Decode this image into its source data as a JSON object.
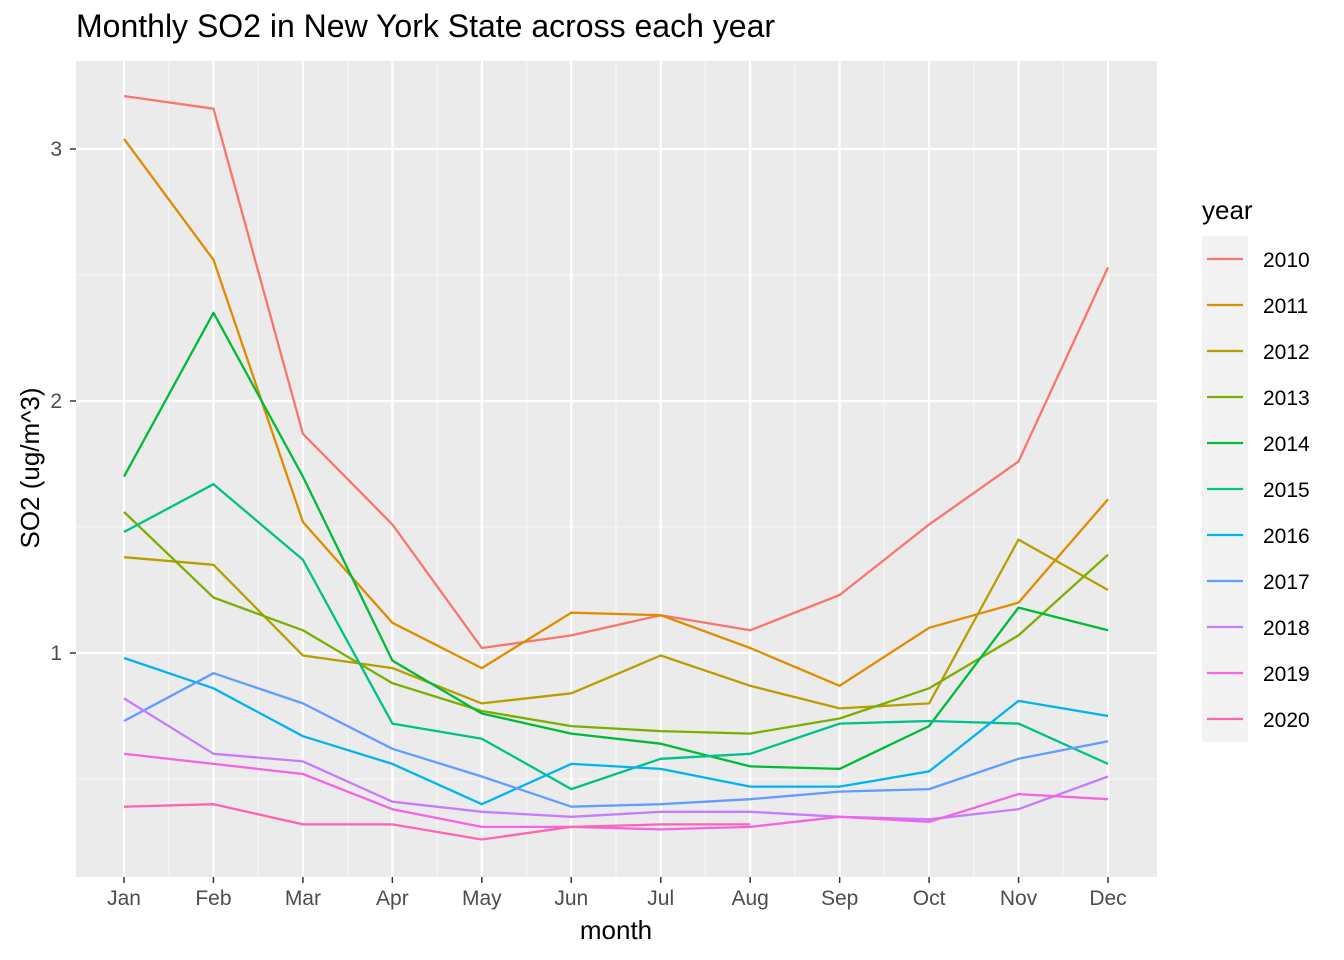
{
  "chart_data": {
    "type": "line",
    "title": "Monthly SO2 in New York State across each year",
    "xlabel": "month",
    "ylabel": "SO2 (ug/m^3)",
    "categories": [
      "Jan",
      "Feb",
      "Mar",
      "Apr",
      "May",
      "Jun",
      "Jul",
      "Aug",
      "Sep",
      "Oct",
      "Nov",
      "Dec"
    ],
    "ylim": [
      0.1,
      3.35
    ],
    "yticks": [
      1,
      2,
      3
    ],
    "grid": true,
    "legend": {
      "title": "year",
      "placement": "right"
    },
    "series": [
      {
        "name": "2010",
        "color": "#F8766D",
        "values": [
          3.21,
          3.16,
          1.87,
          1.51,
          1.02,
          1.07,
          1.15,
          1.09,
          1.23,
          1.51,
          1.76,
          2.53
        ]
      },
      {
        "name": "2011",
        "color": "#DE8C00",
        "values": [
          3.04,
          2.56,
          1.52,
          1.12,
          0.94,
          1.16,
          1.15,
          1.02,
          0.87,
          1.1,
          1.2,
          1.61
        ]
      },
      {
        "name": "2012",
        "color": "#B79F00",
        "values": [
          1.38,
          1.35,
          0.99,
          0.94,
          0.8,
          0.84,
          0.99,
          0.87,
          0.78,
          0.8,
          1.45,
          1.25
        ]
      },
      {
        "name": "2013",
        "color": "#7CAE00",
        "values": [
          1.56,
          1.22,
          1.09,
          0.88,
          0.77,
          0.71,
          0.69,
          0.68,
          0.74,
          0.86,
          1.07,
          1.39
        ]
      },
      {
        "name": "2014",
        "color": "#00BA38",
        "values": [
          1.7,
          2.35,
          1.7,
          0.97,
          0.76,
          0.68,
          0.64,
          0.55,
          0.54,
          0.71,
          1.18,
          1.09
        ]
      },
      {
        "name": "2015",
        "color": "#00C08B",
        "values": [
          1.48,
          1.67,
          1.37,
          0.72,
          0.66,
          0.46,
          0.58,
          0.6,
          0.72,
          0.73,
          0.72,
          0.56
        ]
      },
      {
        "name": "2016",
        "color": "#00B4F0",
        "values": [
          0.98,
          0.86,
          0.67,
          0.56,
          0.4,
          0.56,
          0.54,
          0.47,
          0.47,
          0.53,
          0.81,
          0.75
        ]
      },
      {
        "name": "2017",
        "color": "#619CFF",
        "values": [
          0.73,
          0.92,
          0.8,
          0.62,
          0.51,
          0.39,
          0.4,
          0.42,
          0.45,
          0.46,
          0.58,
          0.65
        ]
      },
      {
        "name": "2018",
        "color": "#C77CFF",
        "values": [
          0.82,
          0.6,
          0.57,
          0.41,
          0.37,
          0.35,
          0.37,
          0.37,
          0.35,
          0.34,
          0.38,
          0.51
        ]
      },
      {
        "name": "2019",
        "color": "#F564E3",
        "values": [
          0.6,
          0.56,
          0.52,
          0.38,
          0.31,
          0.31,
          0.3,
          0.31,
          0.35,
          0.33,
          0.44,
          0.42
        ]
      },
      {
        "name": "2020",
        "color": "#FF64B0",
        "values": [
          0.39,
          0.4,
          0.32,
          0.32,
          0.26,
          0.31,
          0.32,
          0.32,
          null,
          null,
          null,
          null
        ]
      }
    ]
  }
}
